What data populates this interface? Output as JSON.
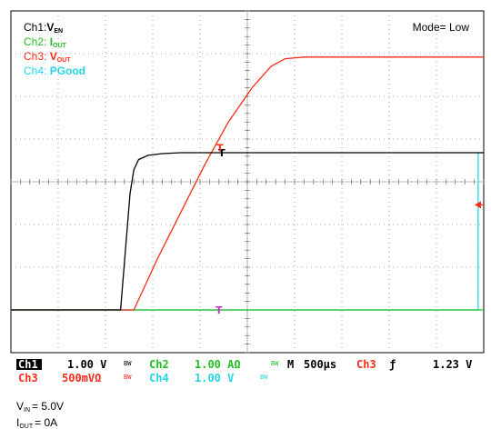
{
  "chart_data": {
    "type": "line",
    "title": "",
    "xlabel": "",
    "ylabel": "",
    "grid": true,
    "grid_divisions": {
      "horizontal": 10,
      "vertical": 8
    },
    "x_range_us": [
      0,
      5000
    ],
    "legend": [
      {
        "prefix": "Ch1:",
        "main": "V",
        "sub": "EN",
        "color": "#000000"
      },
      {
        "prefix": "Ch2: ",
        "main": "I",
        "sub": "OUT",
        "color": "#1fbf1f"
      },
      {
        "prefix": "Ch3: ",
        "main": "V",
        "sub": "OUT",
        "color": "#ff2a1a"
      },
      {
        "prefix": "Ch4: ",
        "main": "PGood",
        "sub": "",
        "color": "#22d6e6"
      }
    ],
    "mode_label": "Mode= Low",
    "series": [
      {
        "name": "Ch1",
        "color": "#000000",
        "unit": "V/div",
        "scale": 1.0,
        "x": [
          0,
          1160,
          1260,
          1300,
          1350,
          1450,
          1600,
          1800,
          2200,
          5000
        ],
        "y": [
          0,
          0,
          2.72,
          3.28,
          3.52,
          3.62,
          3.66,
          3.68,
          3.68,
          3.68
        ]
      },
      {
        "name": "Ch2",
        "color": "#1fbf1f",
        "unit": "A/div",
        "scale": 1.0,
        "x": [
          0,
          5000
        ],
        "y": [
          0,
          0
        ]
      },
      {
        "name": "Ch3",
        "color": "#ff2a1a",
        "unit": "V/div",
        "scale": 0.5,
        "x": [
          0,
          1300,
          1550,
          1800,
          2050,
          2300,
          2550,
          2750,
          2900,
          3100,
          5000
        ],
        "y": [
          0,
          0,
          0.6,
          1.15,
          1.7,
          2.2,
          2.6,
          2.85,
          2.94,
          2.96,
          2.96
        ]
      },
      {
        "name": "Ch4",
        "color": "#22d6e6",
        "unit": "V/div",
        "scale": 1.0,
        "x": [
          0,
          4940,
          4941,
          5000
        ],
        "y": [
          0,
          0,
          3.68,
          3.68
        ]
      }
    ],
    "trigger_markers": [
      {
        "label": "T",
        "color": "#000000",
        "x": 2230,
        "y": 3.68,
        "series": "Ch1"
      },
      {
        "label": "T",
        "color": "#ff2a1a",
        "x": 2210,
        "y": 1.9,
        "series": "Ch3"
      },
      {
        "label": "T",
        "color": "#cc33cc",
        "x": 2200,
        "y": 0,
        "series": "Ch2"
      }
    ],
    "status_bar": {
      "row1": [
        {
          "text": "Ch1",
          "color": "#000000",
          "box": true
        },
        {
          "text": "1.00 V",
          "color": "#000000"
        },
        {
          "text": "BW",
          "color": "#000000",
          "small": true
        },
        {
          "text": "Ch2",
          "color": "#1fbf1f"
        },
        {
          "text": "1.00 AΩ",
          "color": "#1fbf1f"
        },
        {
          "text": "BW",
          "color": "#1fbf1f",
          "small": true
        },
        {
          "text": "M",
          "color": "#000000"
        },
        {
          "text": "500µs",
          "color": "#000000"
        },
        {
          "text": "Ch3",
          "color": "#ff2a1a"
        },
        {
          "text": "ƒ",
          "color": "#000000"
        },
        {
          "text": "1.23 V",
          "color": "#000000"
        }
      ],
      "row2": [
        {
          "text": "Ch3",
          "color": "#ff2a1a"
        },
        {
          "text": "500mVΩ",
          "color": "#ff2a1a"
        },
        {
          "text": "BW",
          "color": "#ff2a1a",
          "small": true
        },
        {
          "text": "Ch4",
          "color": "#22d6e6"
        },
        {
          "text": "1.00 V",
          "color": "#22d6e6"
        },
        {
          "text": "BW",
          "color": "#22d6e6",
          "small": true
        }
      ]
    }
  },
  "conditions": [
    {
      "main": "V",
      "sub": "IN",
      "value": "= 5.0V"
    },
    {
      "main": "I",
      "sub": "OUT",
      "value": "= 0A"
    }
  ]
}
